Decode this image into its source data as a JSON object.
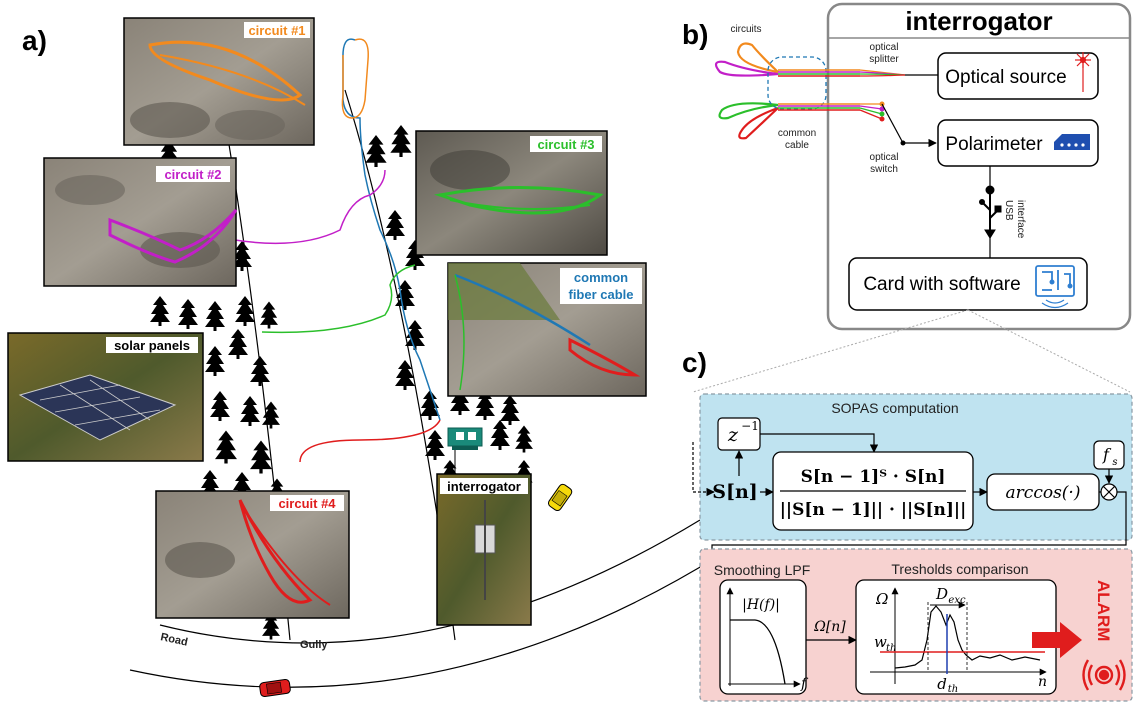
{
  "panels": {
    "a": "a)",
    "b": "b)",
    "c": "c)"
  },
  "photo_labels": {
    "circuit1": "circuit #1",
    "circuit2": "circuit #2",
    "circuit3": "circuit #3",
    "circuit4": "circuit #4",
    "common": [
      "common",
      "fiber cable"
    ],
    "solar": "solar panels",
    "interrogator": "interrogator"
  },
  "map_labels": {
    "road": "Road",
    "gully": "Gully"
  },
  "interrogator": {
    "title": "interrogator",
    "circuits": "circuits",
    "optical_splitter": [
      "optical",
      "splitter"
    ],
    "common_cable": [
      "common",
      "cable"
    ],
    "optical_switch": [
      "optical",
      "switch"
    ],
    "optical_source": "Optical source",
    "polarimeter": "Polarimeter",
    "usb": [
      "USB",
      "interface"
    ],
    "card": "Card with software"
  },
  "processing": {
    "sopas": "SOPAS computation",
    "delay": "z",
    "delay_exp": "−1",
    "input": "S[n]",
    "numerator": "S[n − 1]ᵀ · S[n]",
    "denominator": "||S[n − 1]|| · ||S[n]||",
    "arccos": "arccos(·)",
    "fs": "f",
    "fs_sub": "s",
    "smoothing": "Smoothing LPF",
    "hf": "|H(f)|",
    "f": "f",
    "omega_n": "Ω[n]",
    "thresholds": "Tresholds comparison",
    "omega": "Ω",
    "dexc": "D",
    "dexc_sub": "exc",
    "wth": "w",
    "wth_sub": "th",
    "dth": "d",
    "dth_sub": "th",
    "n": "n",
    "alarm": "ALARM"
  },
  "colors": {
    "orange": "#f28a1e",
    "magenta": "#c21fc8",
    "green": "#2bbf2b",
    "red": "#e01d1d",
    "blue": "#1f78b4",
    "sopas_bg": "#bfe3f0",
    "alarm_bg": "#f7d2d0"
  }
}
